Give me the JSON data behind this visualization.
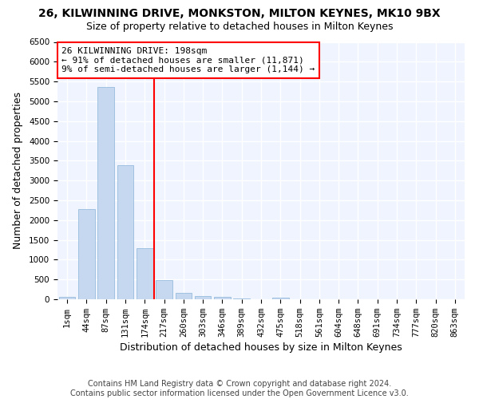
{
  "title1": "26, KILWINNING DRIVE, MONKSTON, MILTON KEYNES, MK10 9BX",
  "title2": "Size of property relative to detached houses in Milton Keynes",
  "xlabel": "Distribution of detached houses by size in Milton Keynes",
  "ylabel": "Number of detached properties",
  "footer1": "Contains HM Land Registry data © Crown copyright and database right 2024.",
  "footer2": "Contains public sector information licensed under the Open Government Licence v3.0.",
  "categories": [
    "1sqm",
    "44sqm",
    "87sqm",
    "131sqm",
    "174sqm",
    "217sqm",
    "260sqm",
    "303sqm",
    "346sqm",
    "389sqm",
    "432sqm",
    "475sqm",
    "518sqm",
    "561sqm",
    "604sqm",
    "648sqm",
    "691sqm",
    "734sqm",
    "777sqm",
    "820sqm",
    "863sqm"
  ],
  "values": [
    60,
    2280,
    5370,
    3380,
    1300,
    480,
    170,
    90,
    60,
    30,
    10,
    40,
    5,
    0,
    0,
    0,
    0,
    0,
    0,
    0,
    0
  ],
  "bar_color": "#c5d8f0",
  "bar_edge_color": "#8ab4d8",
  "vline_color": "red",
  "vline_index": 5,
  "annotation_text": "26 KILWINNING DRIVE: 198sqm\n← 91% of detached houses are smaller (11,871)\n9% of semi-detached houses are larger (1,144) →",
  "annotation_box_color": "white",
  "annotation_box_edgecolor": "red",
  "ylim": [
    0,
    6500
  ],
  "yticks": [
    0,
    500,
    1000,
    1500,
    2000,
    2500,
    3000,
    3500,
    4000,
    4500,
    5000,
    5500,
    6000,
    6500
  ],
  "figure_bg": "#ffffff",
  "plot_bg": "#f0f4ff",
  "grid_color": "white",
  "title1_fontsize": 10,
  "title2_fontsize": 9,
  "xlabel_fontsize": 9,
  "ylabel_fontsize": 9,
  "tick_fontsize": 7.5,
  "footer_fontsize": 7,
  "annot_fontsize": 8
}
